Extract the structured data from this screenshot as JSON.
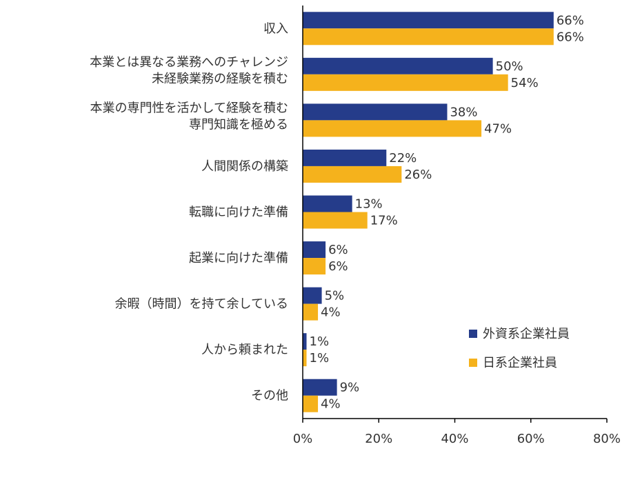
{
  "chart_data": {
    "type": "bar",
    "orientation": "horizontal",
    "categories": [
      [
        "収入"
      ],
      [
        "本業とは異なる業務へのチャレンジ",
        "未経験業務の経験を積む"
      ],
      [
        "本業の専門性を活かして経験を積む",
        "専門知識を極める"
      ],
      [
        "人間関係の構築"
      ],
      [
        "転職に向けた準備"
      ],
      [
        "起業に向けた準備"
      ],
      [
        "余暇（時間）を持て余している"
      ],
      [
        "人から頼まれた"
      ],
      [
        "その他"
      ]
    ],
    "series": [
      {
        "name": "外資系企業社員",
        "color": "#253C8A",
        "values": [
          66,
          50,
          38,
          22,
          13,
          6,
          5,
          1,
          9
        ]
      },
      {
        "name": "日系企業社員",
        "color": "#F5B21C",
        "values": [
          66,
          54,
          47,
          26,
          17,
          6,
          4,
          1,
          4
        ]
      }
    ],
    "xlim": [
      0,
      80
    ],
    "xticks": [
      0,
      20,
      40,
      60,
      80
    ],
    "value_suffix": "%",
    "grid": false,
    "legend_position": "right"
  }
}
